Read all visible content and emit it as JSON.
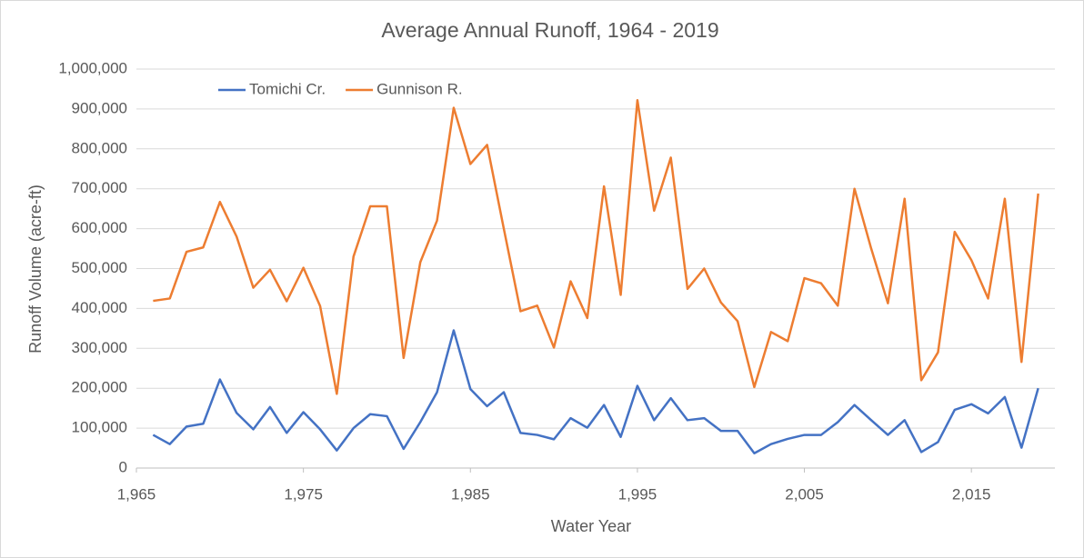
{
  "chart_data": {
    "type": "line",
    "title": "Average Annual Runoff, 1964 - 2019",
    "x_label": "Water Year",
    "y_label": "Runoff Volume (acre-ft)",
    "x": [
      1966,
      1967,
      1968,
      1969,
      1970,
      1971,
      1972,
      1973,
      1974,
      1975,
      1976,
      1977,
      1978,
      1979,
      1980,
      1981,
      1982,
      1983,
      1984,
      1985,
      1986,
      1987,
      1988,
      1989,
      1990,
      1991,
      1992,
      1993,
      1994,
      1995,
      1996,
      1997,
      1998,
      1999,
      2000,
      2001,
      2002,
      2003,
      2004,
      2005,
      2006,
      2007,
      2008,
      2009,
      2010,
      2011,
      2012,
      2013,
      2014,
      2015,
      2016,
      2017,
      2018,
      2019
    ],
    "series": [
      {
        "name": "Tomichi Cr.",
        "color": "#4472c4",
        "values": [
          83000,
          60000,
          104000,
          111000,
          222000,
          138000,
          97000,
          153000,
          88000,
          140000,
          97000,
          44000,
          100000,
          135000,
          130000,
          48000,
          115000,
          190000,
          345000,
          198000,
          155000,
          190000,
          88000,
          83000,
          72000,
          125000,
          101000,
          158000,
          78000,
          206000,
          120000,
          175000,
          120000,
          125000,
          93000,
          93000,
          37000,
          60000,
          73000,
          83000,
          83000,
          115000,
          158000,
          120000,
          83000,
          120000,
          40000,
          65000,
          146000,
          160000,
          137000,
          178000,
          51000,
          200000
        ]
      },
      {
        "name": "Gunnison R.",
        "color": "#ed7d31",
        "values": [
          419000,
          425000,
          542000,
          553000,
          667000,
          580000,
          452000,
          497000,
          418000,
          502000,
          406000,
          186000,
          530000,
          656000,
          656000,
          276000,
          516000,
          620000,
          903000,
          762000,
          810000,
          600000,
          393000,
          407000,
          302000,
          468000,
          376000,
          706000,
          434000,
          922000,
          645000,
          778000,
          449000,
          500000,
          415000,
          368000,
          203000,
          341000,
          318000,
          476000,
          463000,
          407000,
          700000,
          550000,
          413000,
          675000,
          220000,
          290000,
          592000,
          521000,
          425000,
          675000,
          266000,
          688000
        ]
      }
    ],
    "xlim": [
      1965,
      2020
    ],
    "xticks": [
      {
        "value": 1965,
        "label": "1,965"
      },
      {
        "value": 1975,
        "label": "1,975"
      },
      {
        "value": 1985,
        "label": "1,985"
      },
      {
        "value": 1995,
        "label": "1,995"
      },
      {
        "value": 2005,
        "label": "2,005"
      },
      {
        "value": 2015,
        "label": "2,015"
      }
    ],
    "ylim": [
      0,
      1000000
    ],
    "yticks": [
      0,
      {
        "value": 100000,
        "label": "100,000"
      },
      {
        "value": 200000,
        "label": "200,000"
      },
      {
        "value": 300000,
        "label": "300,000"
      },
      {
        "value": 400000,
        "label": "400,000"
      },
      {
        "value": 500000,
        "label": "500,000"
      },
      {
        "value": 600000,
        "label": "600,000"
      },
      {
        "value": 700000,
        "label": "700,000"
      },
      {
        "value": 800000,
        "label": "800,000"
      },
      {
        "value": 900000,
        "label": "900,000"
      },
      {
        "value": 1000000,
        "label": "1,000,000"
      }
    ],
    "grid": true,
    "legend": "top-left"
  }
}
